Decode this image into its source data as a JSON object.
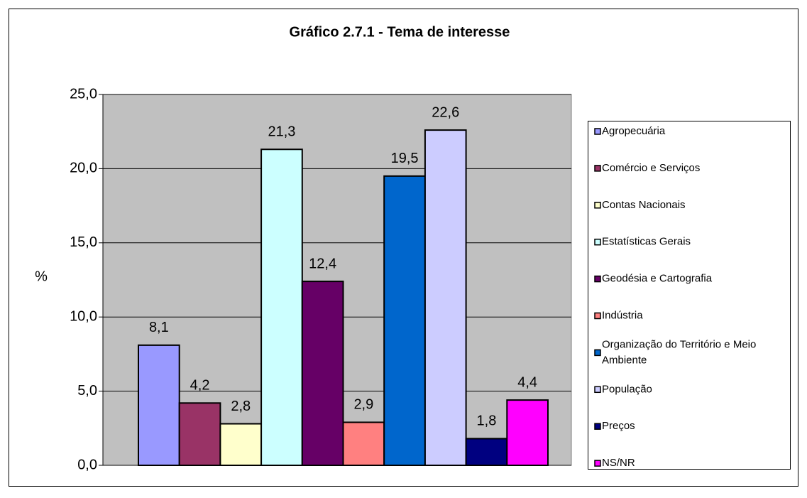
{
  "chart_data": {
    "type": "bar",
    "title": "Gráfico 2.7.1 - Tema de interesse",
    "y_label": "%",
    "series": [
      {
        "name": "Agropecuária",
        "color": "#9999ff",
        "values": [
          8.1
        ],
        "value_labels": [
          "8,1"
        ]
      },
      {
        "name": "Comércio e Serviços",
        "color": "#993366",
        "values": [
          4.2
        ],
        "value_labels": [
          "4,2"
        ]
      },
      {
        "name": "Contas Nacionais",
        "color": "#ffffcc",
        "values": [
          2.8
        ],
        "value_labels": [
          "2,8"
        ]
      },
      {
        "name": "Estatísticas Gerais",
        "color": "#ccffff",
        "values": [
          21.3
        ],
        "value_labels": [
          "21,3"
        ]
      },
      {
        "name": "Geodésia e Cartografia",
        "color": "#660066",
        "values": [
          12.4
        ],
        "value_labels": [
          "12,4"
        ]
      },
      {
        "name": "Indústria",
        "color": "#ff8080",
        "values": [
          2.9
        ],
        "value_labels": [
          "2,9"
        ]
      },
      {
        "name": "Organização do Território e Meio Ambiente",
        "color": "#0066cc",
        "values": [
          19.5
        ],
        "value_labels": [
          "19,5"
        ]
      },
      {
        "name": "População",
        "color": "#ccccff",
        "values": [
          22.6
        ],
        "value_labels": [
          "22,6"
        ]
      },
      {
        "name": "Preços",
        "color": "#000080",
        "values": [
          1.8
        ],
        "value_labels": [
          "1,8"
        ]
      },
      {
        "name": "NS/NR",
        "color": "#ff00ff",
        "values": [
          4.4
        ],
        "value_labels": [
          "4,4"
        ]
      }
    ],
    "ylim": [
      0,
      25
    ],
    "yticks": [
      {
        "value": 0,
        "label": "0,0"
      },
      {
        "value": 5,
        "label": "5,0"
      },
      {
        "value": 10,
        "label": "10,0"
      },
      {
        "value": 15,
        "label": "15,0"
      },
      {
        "value": 20,
        "label": "20,0"
      },
      {
        "value": 25,
        "label": "25,0"
      }
    ],
    "grid": true,
    "legend": "right"
  }
}
